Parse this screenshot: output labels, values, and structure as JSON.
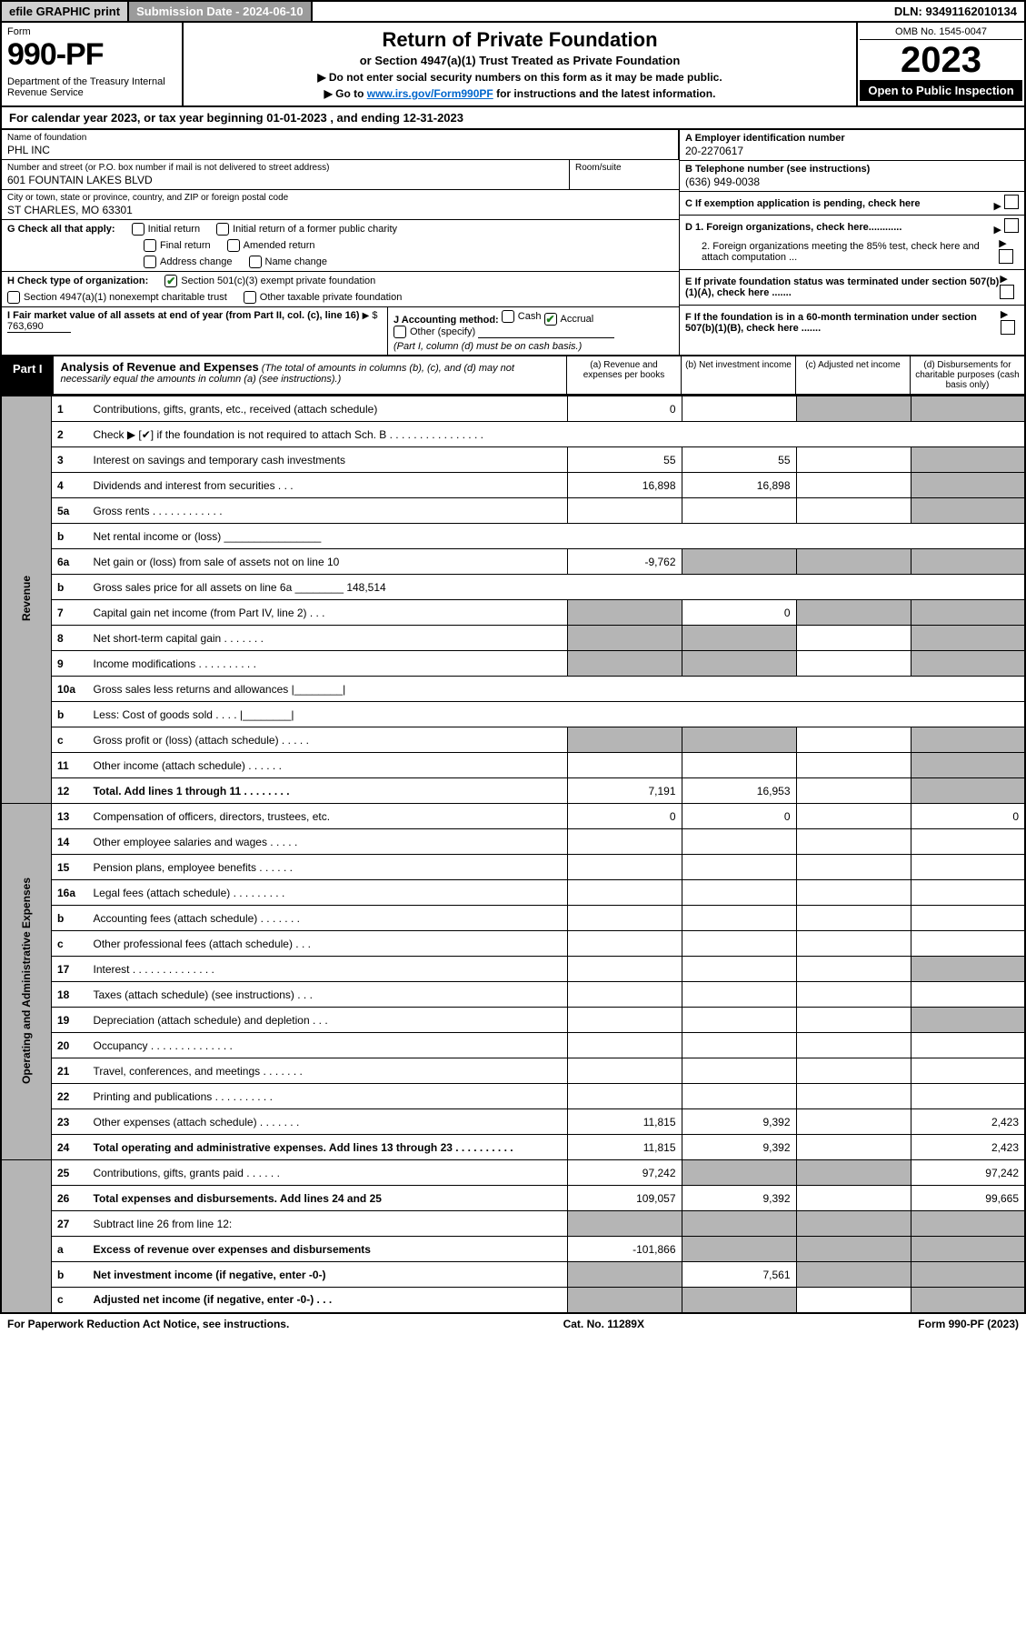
{
  "top": {
    "efile": "efile GRAPHIC print",
    "sub_date_label": "Submission Date - 2024-06-10",
    "dln": "DLN: 93491162010134"
  },
  "hdr": {
    "form": "Form",
    "num": "990-PF",
    "dept": "Department of the Treasury\nInternal Revenue Service",
    "title": "Return of Private Foundation",
    "sub": "or Section 4947(a)(1) Trust Treated as Private Foundation",
    "note1": "▶ Do not enter social security numbers on this form as it may be made public.",
    "note2_pre": "▶ Go to ",
    "note2_link": "www.irs.gov/Form990PF",
    "note2_post": " for instructions and the latest information.",
    "omb": "OMB No. 1545-0047",
    "year": "2023",
    "open": "Open to Public Inspection"
  },
  "cal": "For calendar year 2023, or tax year beginning 01-01-2023                               , and ending 12-31-2023",
  "info": {
    "name_lbl": "Name of foundation",
    "name": "PHL INC",
    "addr_lbl": "Number and street (or P.O. box number if mail is not delivered to street address)",
    "addr": "601 FOUNTAIN LAKES BLVD",
    "room_lbl": "Room/suite",
    "city_lbl": "City or town, state or province, country, and ZIP or foreign postal code",
    "city": "ST CHARLES, MO  63301",
    "a_lbl": "A Employer identification number",
    "a": "20-2270617",
    "b_lbl": "B Telephone number (see instructions)",
    "b": "(636) 949-0038",
    "c": "C If exemption application is pending, check here",
    "d1": "D 1. Foreign organizations, check here............",
    "d2": "2. Foreign organizations meeting the 85% test, check here and attach computation ...",
    "e": "E  If private foundation status was terminated under section 507(b)(1)(A), check here .......",
    "f": "F  If the foundation is in a 60-month termination under section 507(b)(1)(B), check here .......",
    "g_lbl": "G Check all that apply:",
    "g_opts": [
      "Initial return",
      "Initial return of a former public charity",
      "Final return",
      "Amended return",
      "Address change",
      "Name change"
    ],
    "h_lbl": "H Check type of organization:",
    "h1": "Section 501(c)(3) exempt private foundation",
    "h2": "Section 4947(a)(1) nonexempt charitable trust",
    "h3": "Other taxable private foundation",
    "i_lbl": "I Fair market value of all assets at end of year (from Part II, col. (c), line 16)",
    "i_val": "763,690",
    "j_lbl": "J Accounting method:",
    "j1": "Cash",
    "j2": "Accrual",
    "j3": "Other (specify)",
    "j_note": "(Part I, column (d) must be on cash basis.)"
  },
  "part1": {
    "tag": "Part I",
    "title": "Analysis of Revenue and Expenses",
    "note": "(The total of amounts in columns (b), (c), and (d) may not necessarily equal the amounts in column (a) (see instructions).)",
    "col_a": "(a)   Revenue and expenses per books",
    "col_b": "(b)   Net investment income",
    "col_c": "(c)   Adjusted net income",
    "col_d": "(d)   Disbursements for charitable purposes (cash basis only)"
  },
  "sides": {
    "rev": "Revenue",
    "opr": "Operating and Administrative Expenses"
  },
  "rows": [
    {
      "n": "1",
      "d": "Contributions, gifts, grants, etc., received (attach schedule)",
      "a": "0",
      "b": "",
      "c": "g",
      "dd": "g"
    },
    {
      "n": "2",
      "d": "Check ▶ [✔] if the foundation is not required to attach Sch. B   .  .  .  .  .  .  .  .  .  .  .  .  .  .  .  .",
      "a": "",
      "b": "",
      "c": "",
      "dd": "",
      "across": true
    },
    {
      "n": "3",
      "d": "Interest on savings and temporary cash investments",
      "a": "55",
      "b": "55",
      "c": "",
      "dd": "g"
    },
    {
      "n": "4",
      "d": "Dividends and interest from securities     .   .   .",
      "a": "16,898",
      "b": "16,898",
      "c": "",
      "dd": "g"
    },
    {
      "n": "5a",
      "d": "Gross rents    .   .   .   .   .   .   .   .   .   .   .   .",
      "a": "",
      "b": "",
      "c": "",
      "dd": "g"
    },
    {
      "n": "b",
      "d": "Net rental income or (loss)  ________________",
      "a": "",
      "b": "",
      "c": "",
      "dd": "",
      "across": true
    },
    {
      "n": "6a",
      "d": "Net gain or (loss) from sale of assets not on line 10",
      "a": "-9,762",
      "b": "g",
      "c": "g",
      "dd": "g"
    },
    {
      "n": "b",
      "d": "Gross sales price for all assets on line 6a ________ 148,514",
      "a": "",
      "b": "",
      "c": "",
      "dd": "",
      "across": true
    },
    {
      "n": "7",
      "d": "Capital gain net income (from Part IV, line 2)   .   .   .",
      "a": "g",
      "b": "0",
      "c": "g",
      "dd": "g"
    },
    {
      "n": "8",
      "d": "Net short-term capital gain  .   .   .   .   .   .   .",
      "a": "g",
      "b": "g",
      "c": "",
      "dd": "g"
    },
    {
      "n": "9",
      "d": "Income modifications .   .   .   .   .   .   .   .   .   .",
      "a": "g",
      "b": "g",
      "c": "",
      "dd": "g"
    },
    {
      "n": "10a",
      "d": "Gross sales less returns and allowances  |________|",
      "a": "",
      "b": "",
      "c": "",
      "dd": "",
      "across": true
    },
    {
      "n": "b",
      "d": "Less: Cost of goods sold    .   .   .   .    |________|",
      "a": "",
      "b": "",
      "c": "",
      "dd": "",
      "across": true
    },
    {
      "n": "c",
      "d": "Gross profit or (loss) (attach schedule)    .   .   .   .   .",
      "a": "g",
      "b": "g",
      "c": "",
      "dd": "g"
    },
    {
      "n": "11",
      "d": "Other income (attach schedule)    .   .   .   .   .   .",
      "a": "",
      "b": "",
      "c": "",
      "dd": "g"
    },
    {
      "n": "12",
      "d": "Total. Add lines 1 through 11   .   .   .   .   .   .   .   .",
      "a": "7,191",
      "b": "16,953",
      "c": "",
      "dd": "g",
      "bold": true
    },
    {
      "n": "13",
      "d": "Compensation of officers, directors, trustees, etc.",
      "a": "0",
      "b": "0",
      "c": "",
      "dd": "0"
    },
    {
      "n": "14",
      "d": "Other employee salaries and wages   .   .   .   .   .",
      "a": "",
      "b": "",
      "c": "",
      "dd": ""
    },
    {
      "n": "15",
      "d": "Pension plans, employee benefits  .   .   .   .   .   .",
      "a": "",
      "b": "",
      "c": "",
      "dd": ""
    },
    {
      "n": "16a",
      "d": "Legal fees (attach schedule) .   .   .   .   .   .   .   .   .",
      "a": "",
      "b": "",
      "c": "",
      "dd": ""
    },
    {
      "n": "b",
      "d": "Accounting fees (attach schedule) .   .   .   .   .   .   .",
      "a": "",
      "b": "",
      "c": "",
      "dd": ""
    },
    {
      "n": "c",
      "d": "Other professional fees (attach schedule)    .   .   .",
      "a": "",
      "b": "",
      "c": "",
      "dd": ""
    },
    {
      "n": "17",
      "d": "Interest  .   .   .   .   .   .   .   .   .   .   .   .   .   .",
      "a": "",
      "b": "",
      "c": "",
      "dd": "g"
    },
    {
      "n": "18",
      "d": "Taxes (attach schedule) (see instructions)     .   .   .",
      "a": "",
      "b": "",
      "c": "",
      "dd": ""
    },
    {
      "n": "19",
      "d": "Depreciation (attach schedule) and depletion    .   .   .",
      "a": "",
      "b": "",
      "c": "",
      "dd": "g"
    },
    {
      "n": "20",
      "d": "Occupancy .   .   .   .   .   .   .   .   .   .   .   .   .   .",
      "a": "",
      "b": "",
      "c": "",
      "dd": ""
    },
    {
      "n": "21",
      "d": "Travel, conferences, and meetings .   .   .   .   .   .   .",
      "a": "",
      "b": "",
      "c": "",
      "dd": ""
    },
    {
      "n": "22",
      "d": "Printing and publications .   .   .   .   .   .   .   .   .   .",
      "a": "",
      "b": "",
      "c": "",
      "dd": ""
    },
    {
      "n": "23",
      "d": "Other expenses (attach schedule) .   .   .   .   .   .   .",
      "a": "11,815",
      "b": "9,392",
      "c": "",
      "dd": "2,423"
    },
    {
      "n": "24",
      "d": "Total operating and administrative expenses. Add lines 13 through 23   .   .   .   .   .   .   .   .   .   .",
      "a": "11,815",
      "b": "9,392",
      "c": "",
      "dd": "2,423",
      "bold": true
    },
    {
      "n": "25",
      "d": "Contributions, gifts, grants paid     .   .   .   .   .   .",
      "a": "97,242",
      "b": "g",
      "c": "g",
      "dd": "97,242"
    },
    {
      "n": "26",
      "d": "Total expenses and disbursements. Add lines 24 and 25",
      "a": "109,057",
      "b": "9,392",
      "c": "",
      "dd": "99,665",
      "bold": true
    },
    {
      "n": "27",
      "d": "Subtract line 26 from line 12:",
      "a": "g",
      "b": "g",
      "c": "g",
      "dd": "g"
    },
    {
      "n": "a",
      "d": "Excess of revenue over expenses and disbursements",
      "a": "-101,866",
      "b": "g",
      "c": "g",
      "dd": "g",
      "bold": true
    },
    {
      "n": "b",
      "d": "Net investment income (if negative, enter -0-)",
      "a": "g",
      "b": "7,561",
      "c": "g",
      "dd": "g",
      "bold": true
    },
    {
      "n": "c",
      "d": "Adjusted net income (if negative, enter -0-)   .   .   .",
      "a": "g",
      "b": "g",
      "c": "",
      "dd": "g",
      "bold": true
    }
  ],
  "footer": {
    "left": "For Paperwork Reduction Act Notice, see instructions.",
    "mid": "Cat. No. 11289X",
    "right": "Form 990-PF (2023)"
  }
}
